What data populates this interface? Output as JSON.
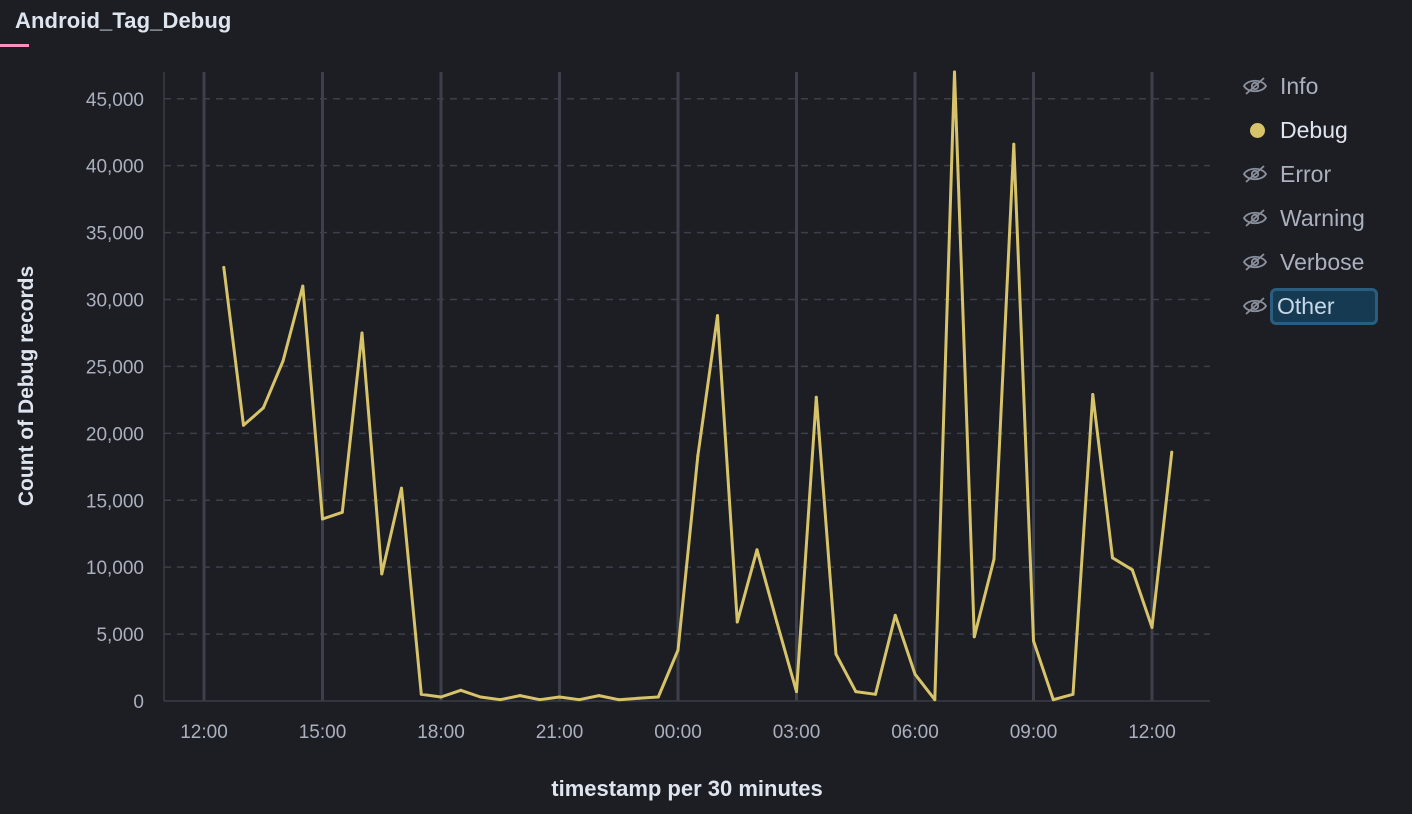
{
  "panel": {
    "title": "Android_Tag_Debug"
  },
  "legend": {
    "items": [
      {
        "label": "Info",
        "state": "hidden",
        "icon": "eye-slash-icon"
      },
      {
        "label": "Debug",
        "state": "visible",
        "icon": "dot-icon",
        "color": "#d6c36a"
      },
      {
        "label": "Error",
        "state": "hidden",
        "icon": "eye-slash-icon"
      },
      {
        "label": "Warning",
        "state": "hidden",
        "icon": "eye-slash-icon"
      },
      {
        "label": "Verbose",
        "state": "hidden",
        "icon": "eye-slash-icon"
      },
      {
        "label": "Other",
        "state": "hidden",
        "icon": "eye-slash-icon",
        "focused": true
      }
    ]
  },
  "chart_data": {
    "type": "line",
    "xlabel": "timestamp per 30 minutes",
    "ylabel": "Count of Debug records",
    "ylim": [
      0,
      47000
    ],
    "y_ticks": [
      "0",
      "5,000",
      "10,000",
      "15,000",
      "20,000",
      "25,000",
      "30,000",
      "35,000",
      "40,000",
      "45,000"
    ],
    "x_ticks": [
      "12:00",
      "15:00",
      "18:00",
      "21:00",
      "00:00",
      "03:00",
      "06:00",
      "09:00",
      "12:00"
    ],
    "grid": true,
    "series": [
      {
        "name": "Debug",
        "color": "#d6c36a",
        "x": [
          "12:30",
          "13:00",
          "13:30",
          "14:00",
          "14:30",
          "15:00",
          "15:30",
          "16:00",
          "16:30",
          "17:00",
          "17:30",
          "18:00",
          "18:30",
          "19:00",
          "19:30",
          "20:00",
          "20:30",
          "21:00",
          "21:30",
          "22:00",
          "22:30",
          "23:00",
          "23:30",
          "00:00",
          "00:30",
          "01:00",
          "01:30",
          "02:00",
          "02:30",
          "03:00",
          "03:30",
          "04:00",
          "04:30",
          "05:00",
          "05:30",
          "06:00",
          "06:30",
          "07:00",
          "07:30",
          "08:00",
          "08:30",
          "09:00",
          "09:30",
          "10:00",
          "10:30",
          "11:00",
          "11:30",
          "12:00",
          "12:30"
        ],
        "values": [
          32400,
          20600,
          21900,
          25400,
          31000,
          13600,
          14100,
          27500,
          9500,
          15900,
          500,
          300,
          800,
          300,
          100,
          400,
          100,
          300,
          100,
          400,
          100,
          200,
          300,
          3800,
          18300,
          28800,
          5900,
          11300,
          5900,
          700,
          22700,
          3500,
          700,
          500,
          6400,
          2000,
          100,
          47000,
          4800,
          10600,
          41600,
          4500,
          100,
          500,
          22900,
          10700,
          9800,
          5500,
          18600
        ]
      }
    ]
  }
}
